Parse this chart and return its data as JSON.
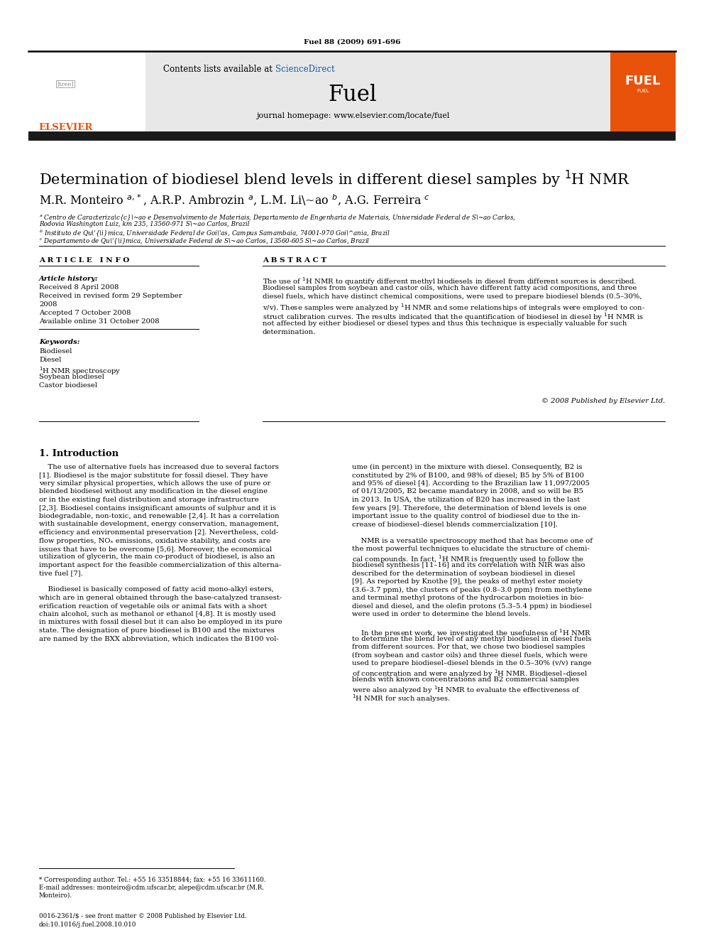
{
  "journal_ref": "Fuel 88 (2009) 691-696",
  "journal_name": "Fuel",
  "journal_homepage": "journal homepage: www.elsevier.com/locate/fuel",
  "title": "Determination of biodiesel blend levels in different diesel samples by $^1$H NMR",
  "article_info_label": "A R T I C L E   I N F O",
  "abstract_label": "A B S T R A C T",
  "copyright": "© 2008 Published by Elsevier Ltd.",
  "intro_heading": "1. Introduction",
  "footer1": "0016-2361/$ - see front matter © 2008 Published by Elsevier Ltd.",
  "footer2": "doi:10.1016/j.fuel.2008.10.010",
  "elsevier_color": "#E8520A",
  "link_color": "#1F5C9E",
  "header_bg": "#E8E8E8",
  "black_bar_color": "#1A1A1A",
  "page_bg": "#FFFFFF",
  "kw_list": [
    "Biodiesel",
    "Diesel",
    "$^1$H NMR spectroscopy",
    "Soybean biodiesel",
    "Castor biodiesel"
  ],
  "abstract_lines": [
    "The use of $^1$H NMR to quantify different methyl biodiesels in diesel from different sources is described.",
    "Biodiesel samples from soybean and castor oils, which have different fatty acid compositions, and three",
    "diesel fuels, which have distinct chemical compositions, were used to prepare biodiesel blends (0.5–30%,",
    "v/v). These samples were analyzed by $^1$H NMR and some relationships of integrals were employed to con-",
    "struct calibration curves. The results indicated that the quantification of biodiesel in diesel by $^1$H NMR is",
    "not affected by either biodiesel or diesel types and thus this technique is especially valuable for such",
    "determination."
  ],
  "col1_lines": [
    "    The use of alternative fuels has increased due to several factors",
    "[1]. Biodiesel is the major substitute for fossil diesel. They have",
    "very similar physical properties, which allows the use of pure or",
    "blended biodiesel without any modification in the diesel engine",
    "or in the existing fuel distribution and storage infrastructure",
    "[2,3]. Biodiesel contains insignificant amounts of sulphur and it is",
    "biodegradable, non-toxic, and renewable [2,4]. It has a correlation",
    "with sustainable development, energy conservation, management,",
    "efficiency and environmental preservation [2]. Nevertheless, cold-",
    "flow properties, NOₓ emissions, oxidative stability, and costs are",
    "issues that have to be overcome [5,6]. Moreover, the economical",
    "utilization of glycerin, the main co-product of biodiesel, is also an",
    "important aspect for the feasible commercialization of this alterna-",
    "tive fuel [7].",
    "",
    "    Biodiesel is basically composed of fatty acid mono-alkyl esters,",
    "which are in general obtained through the base-catalyzed transest-",
    "erification reaction of vegetable oils or animal fats with a short",
    "chain alcohol, such as methanol or ethanol [4,8]. It is mostly used",
    "in mixtures with fossil diesel but it can also be employed in its pure",
    "state. The designation of pure biodiesel is B100 and the mixtures",
    "are named by the BXX abbreviation, which indicates the B100 vol-"
  ],
  "col2_lines": [
    "ume (in percent) in the mixture with diesel. Consequently, B2 is",
    "constituted by 2% of B100, and 98% of diesel; B5 by 5% of B100",
    "and 95% of diesel [4]. According to the Brazilian law 11,097/2005",
    "of 01/13/2005, B2 became mandatory in 2008, and so will be B5",
    "in 2013. In USA, the utilization of B20 has increased in the last",
    "few years [9]. Therefore, the determination of blend levels is one",
    "important issue to the quality control of biodiesel due to the in-",
    "crease of biodiesel–diesel blends commercialization [10].",
    "",
    "    NMR is a versatile spectroscopy method that has become one of",
    "the most powerful techniques to elucidate the structure of chemi-",
    "cal compounds. In fact, $^1$H NMR is frequently used to follow the",
    "biodiesel synthesis [11–16] and its correlation with NIR was also",
    "described for the determination of soybean biodiesel in diesel",
    "[9]. As reported by Knothe [9], the peaks of methyl ester moiety",
    "(3.6–3.7 ppm), the clusters of peaks (0.8–3.0 ppm) from methylene",
    "and terminal methyl protons of the hydrocarbon moieties in bio-",
    "diesel and diesel, and the olefin protons (5.3–5.4 ppm) in biodiesel",
    "were used in order to determine the blend levels.",
    "",
    "    In the present work, we investigated the usefulness of $^1$H NMR",
    "to determine the blend level of any methyl biodiesel in diesel fuels",
    "from different sources. For that, we chose two biodiesel samples",
    "(from soybean and castor oils) and three diesel fuels, which were",
    "used to prepare biodiesel–diesel blends in the 0.5–30% (v/v) range",
    "of concentration and were analyzed by $^1$H NMR. Biodiesel–diesel",
    "blends with known concentrations and B2 commercial samples",
    "were also analyzed by $^1$H NMR to evaluate the effectiveness of",
    "$^1$H NMR for such analyses."
  ]
}
